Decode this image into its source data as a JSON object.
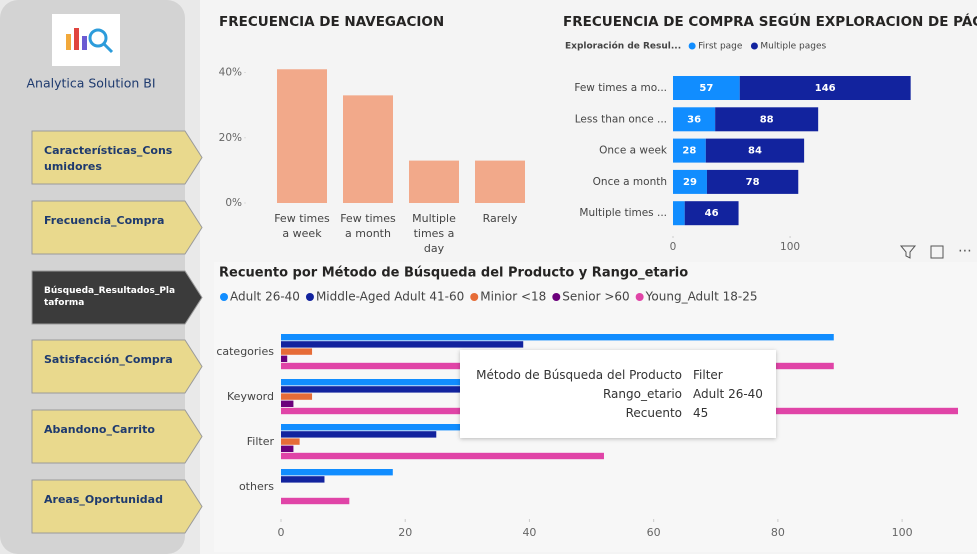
{
  "sidebar": {
    "brand": "Analytica Solution BI",
    "nav": [
      "Características_Consumidores",
      "Frecuencia_Compra",
      "Búsqueda_Resultados_Plataforma",
      "Satisfacción_Compra",
      "Abandono_Carrito",
      "Areas_Oportunidad"
    ],
    "active": 2
  },
  "chart_data": [
    {
      "type": "bar",
      "title": "FRECUENCIA DE NAVEGACION",
      "categories": [
        "Few times a week",
        "Few times a month",
        "Multiple times a day",
        "Rarely"
      ],
      "values": [
        41,
        33,
        13,
        13
      ],
      "color": "#f2a98a",
      "ylim": [
        0,
        42
      ],
      "yticks": [
        {
          "value": 0,
          "label": "0%"
        },
        {
          "value": 20,
          "label": "20%"
        },
        {
          "value": 40,
          "label": "40%"
        }
      ]
    },
    {
      "type": "stacked-hbar",
      "title": "FRECUENCIA DE COMPRA SEGÚN EXPLORACION DE PÁGINAS",
      "legend_title": "Exploración de Resul...",
      "categories": [
        "Few times a mo...",
        "Less than once ...",
        "Once a week",
        "Once a month",
        "Multiple times ..."
      ],
      "series": [
        {
          "name": "First page",
          "color": "#118dff",
          "values": [
            57,
            36,
            28,
            29,
            10
          ]
        },
        {
          "name": "Multiple pages",
          "color": "#12239e",
          "values": [
            146,
            88,
            84,
            78,
            46
          ]
        }
      ],
      "xlim": [
        0,
        205
      ],
      "xticks": [
        0,
        100
      ]
    },
    {
      "type": "grouped-hbar",
      "title": "Recuento por Método de Búsqueda del Producto y Rango_etario",
      "categories": [
        "categories",
        "Keyword",
        "Filter",
        "others"
      ],
      "series": [
        {
          "name": "Adult 26-40",
          "color": "#118dff",
          "values": [
            89,
            40,
            45,
            18
          ]
        },
        {
          "name": "Middle-Aged Adult 41-60",
          "color": "#12239e",
          "values": [
            39,
            30,
            25,
            7
          ]
        },
        {
          "name": "Minior <18",
          "color": "#e66c37",
          "values": [
            5,
            5,
            3,
            0
          ]
        },
        {
          "name": "Senior >60",
          "color": "#6b007b",
          "values": [
            1,
            2,
            2,
            0
          ]
        },
        {
          "name": "Young_Adult 18-25",
          "color": "#e044a7",
          "values": [
            89,
            109,
            52,
            11
          ]
        }
      ],
      "xlim": [
        0,
        109
      ],
      "xticks": [
        0,
        20,
        40,
        60,
        80,
        100
      ]
    }
  ],
  "tooltip": {
    "rows": [
      [
        "Método de Búsqueda del Producto",
        "Filter"
      ],
      [
        "Rango_etario",
        "Adult 26-40"
      ],
      [
        "Recuento",
        "45"
      ]
    ]
  }
}
